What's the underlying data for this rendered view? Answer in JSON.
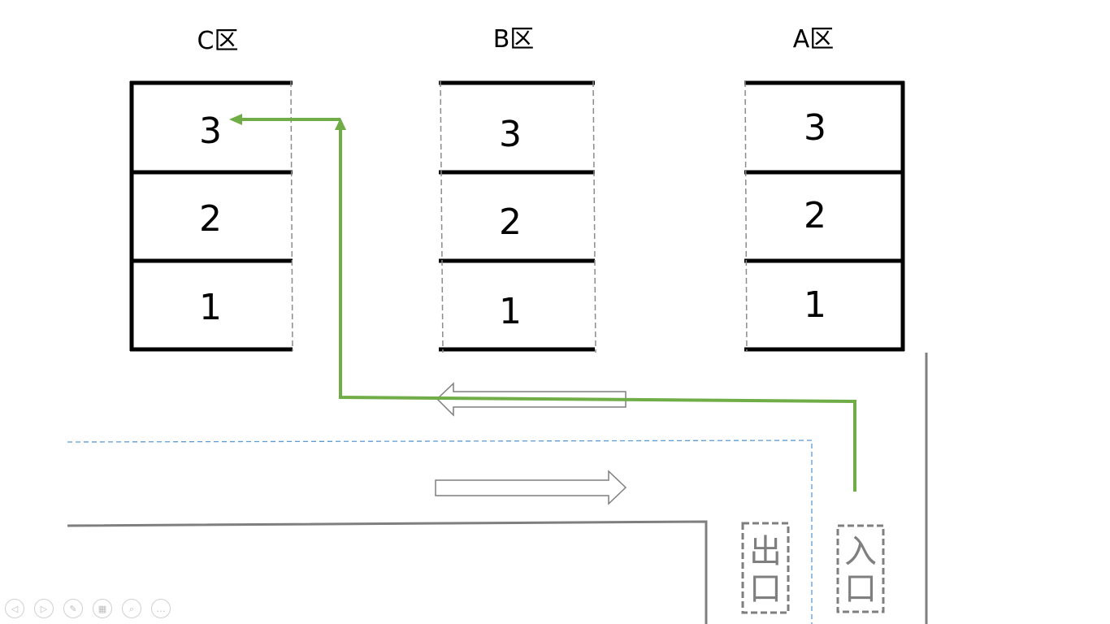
{
  "zones": [
    {
      "id": "c",
      "label": "C区",
      "slots": [
        "3",
        "2",
        "1"
      ]
    },
    {
      "id": "b",
      "label": "B区",
      "slots": [
        "3",
        "2",
        "1"
      ]
    },
    {
      "id": "a",
      "label": "A区",
      "slots": [
        "3",
        "2",
        "1"
      ]
    }
  ],
  "gates": {
    "exit": [
      "出",
      "口"
    ],
    "entrance": [
      "入",
      "口"
    ]
  },
  "route": {
    "color": "#70ad47",
    "from": "入口",
    "to": "C区 3"
  },
  "colors": {
    "shelf_line": "#000000",
    "wall": "#7f7f7f",
    "lane_divider": "#5b9bd5",
    "gate_border": "#7f7f7f"
  },
  "toolbar": [
    {
      "name": "previous-slide-icon",
      "glyph": "◁"
    },
    {
      "name": "next-slide-icon",
      "glyph": "▷"
    },
    {
      "name": "pen-icon",
      "glyph": "✎"
    },
    {
      "name": "slides-grid-icon",
      "glyph": "▦"
    },
    {
      "name": "zoom-icon",
      "glyph": "⌕"
    },
    {
      "name": "more-options-icon",
      "glyph": "…"
    }
  ]
}
